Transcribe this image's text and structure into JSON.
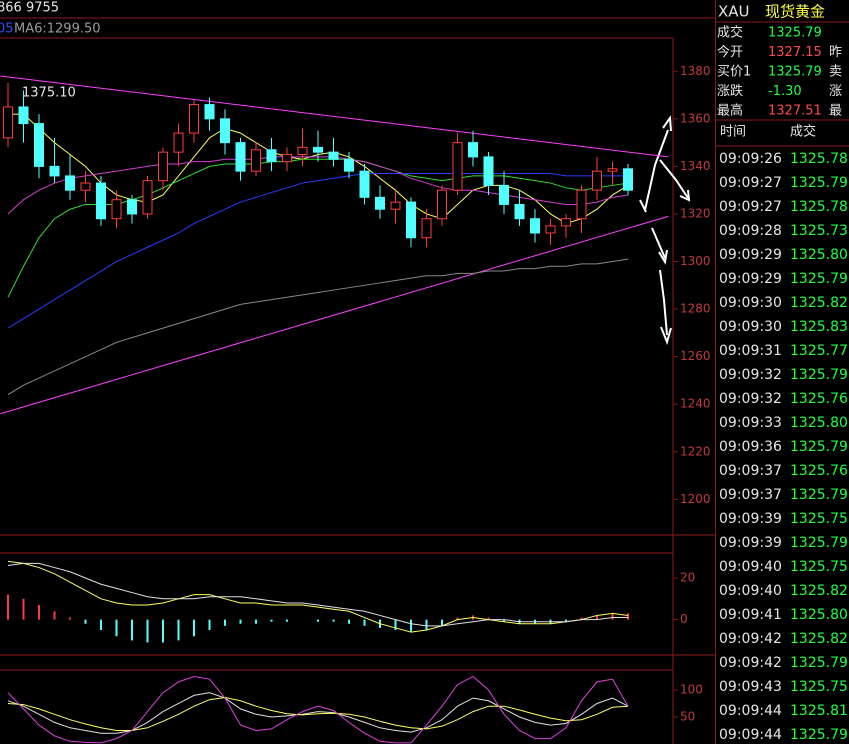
{
  "header": {
    "left_code": "866 9755",
    "ma_prefix": "05",
    "ma_label": "MA6:1299.50"
  },
  "chart_data": [
    {
      "type": "candlestick",
      "ylim": [
        1185,
        1394
      ],
      "yticks": [
        1200,
        1220,
        1240,
        1260,
        1280,
        1300,
        1320,
        1340,
        1360,
        1380
      ],
      "high_label": "1375.10",
      "up_color": "#ff3c3c",
      "down_color": "#50ffff",
      "candles": [
        [
          1352,
          1375.1,
          1348,
          1365
        ],
        [
          1365,
          1372,
          1350,
          1358
        ],
        [
          1358,
          1362,
          1335,
          1340
        ],
        [
          1340,
          1352,
          1333,
          1336
        ],
        [
          1336,
          1345,
          1326,
          1330
        ],
        [
          1330,
          1338,
          1325,
          1333
        ],
        [
          1333,
          1336,
          1315,
          1318
        ],
        [
          1318,
          1330,
          1314,
          1326
        ],
        [
          1326,
          1328,
          1316,
          1320
        ],
        [
          1320,
          1336,
          1318,
          1334
        ],
        [
          1334,
          1348,
          1330,
          1346
        ],
        [
          1346,
          1358,
          1340,
          1354
        ],
        [
          1354,
          1368,
          1350,
          1366
        ],
        [
          1366,
          1369,
          1355,
          1360
        ],
        [
          1360,
          1364,
          1345,
          1350
        ],
        [
          1350,
          1352,
          1334,
          1338
        ],
        [
          1338,
          1350,
          1336,
          1347
        ],
        [
          1347,
          1352,
          1338,
          1342
        ],
        [
          1342,
          1348,
          1338,
          1345
        ],
        [
          1345,
          1356,
          1340,
          1348
        ],
        [
          1348,
          1355,
          1342,
          1346
        ],
        [
          1346,
          1352,
          1340,
          1343
        ],
        [
          1343,
          1346,
          1335,
          1338
        ],
        [
          1338,
          1341,
          1324,
          1327
        ],
        [
          1327,
          1332,
          1318,
          1322
        ],
        [
          1322,
          1330,
          1316,
          1325
        ],
        [
          1325,
          1327,
          1306,
          1310
        ],
        [
          1310,
          1322,
          1306,
          1318
        ],
        [
          1318,
          1332,
          1315,
          1330
        ],
        [
          1330,
          1354,
          1328,
          1350
        ],
        [
          1350,
          1355,
          1340,
          1344
        ],
        [
          1344,
          1346,
          1328,
          1332
        ],
        [
          1332,
          1338,
          1320,
          1324
        ],
        [
          1324,
          1330,
          1315,
          1318
        ],
        [
          1318,
          1322,
          1308,
          1312
        ],
        [
          1312,
          1318,
          1307,
          1315
        ],
        [
          1315,
          1320,
          1310,
          1318
        ],
        [
          1318,
          1332,
          1312,
          1330
        ],
        [
          1330,
          1344,
          1326,
          1338
        ],
        [
          1338,
          1342,
          1332,
          1339
        ],
        [
          1339,
          1341,
          1328,
          1330
        ]
      ],
      "ma_lines": [
        {
          "color": "#ffff60",
          "values": [
            1362,
            1362,
            1356,
            1350,
            1345,
            1340,
            1333,
            1328,
            1326,
            1325,
            1328,
            1336,
            1344,
            1352,
            1356,
            1354,
            1350,
            1346,
            1344,
            1343,
            1345,
            1346,
            1344,
            1340,
            1335,
            1330,
            1324,
            1320,
            1318,
            1324,
            1330,
            1332,
            1332,
            1330,
            1326,
            1320,
            1316,
            1318,
            1322,
            1328,
            1332
          ]
        },
        {
          "color": "#30e030",
          "values": [
            1285,
            1298,
            1310,
            1318,
            1322,
            1324,
            1324,
            1324,
            1326,
            1328,
            1331,
            1334,
            1337,
            1340,
            1341,
            1341,
            1341,
            1342,
            1342,
            1343,
            1343,
            1343,
            1343,
            1342,
            1340,
            1338,
            1336,
            1335,
            1334,
            1335,
            1336,
            1336,
            1336,
            1335,
            1334,
            1333,
            1331,
            1330,
            1331,
            1332,
            1333
          ]
        },
        {
          "color": "#2a3cff",
          "values": [
            1272,
            1276,
            1280,
            1284,
            1288,
            1292,
            1296,
            1300,
            1303,
            1306,
            1309,
            1312,
            1316,
            1319,
            1322,
            1325,
            1327,
            1329,
            1331,
            1333,
            1334,
            1335,
            1336,
            1337,
            1337,
            1337,
            1337,
            1337,
            1337,
            1337,
            1337,
            1337,
            1337,
            1337,
            1337,
            1337,
            1336,
            1336,
            1336,
            1336,
            1336
          ]
        },
        {
          "color": "#888888",
          "values": [
            1244,
            1248,
            1251,
            1254,
            1257,
            1260,
            1263,
            1266,
            1268,
            1270,
            1272,
            1274,
            1276,
            1278,
            1280,
            1282,
            1283,
            1284,
            1285,
            1286,
            1287,
            1288,
            1289,
            1290,
            1291,
            1292,
            1293,
            1294,
            1294,
            1295,
            1295,
            1296,
            1296,
            1297,
            1297,
            1298,
            1298,
            1299,
            1299,
            1300,
            1301
          ]
        },
        {
          "color": "#d040d0",
          "values": [
            1320,
            1326,
            1330,
            1333,
            1335,
            1336,
            1337,
            1338,
            1339,
            1340,
            1341,
            1341,
            1342,
            1342,
            1343,
            1343,
            1343,
            1344,
            1344,
            1344,
            1344,
            1344,
            1343,
            1342,
            1340,
            1338,
            1335,
            1333,
            1331,
            1330,
            1330,
            1329,
            1328,
            1327,
            1326,
            1325,
            1324,
            1324,
            1325,
            1327,
            1328
          ]
        }
      ],
      "trendlines": [
        {
          "color": "#ff40ff",
          "x": [
            -0.5,
            42.6
          ],
          "y": [
            1378,
            1344
          ]
        },
        {
          "color": "#ff40ff",
          "x": [
            -0.5,
            42.6
          ],
          "y": [
            1236,
            1319
          ]
        }
      ]
    },
    {
      "type": "macd",
      "ylim": [
        -17,
        32
      ],
      "yticks": [
        0,
        20
      ],
      "up_color": "#ff3c3c",
      "down_color": "#50ffff",
      "values": [
        12,
        10,
        7,
        4,
        1,
        -2,
        -5,
        -8,
        -10,
        -11,
        -11,
        -10,
        -8,
        -5,
        -3,
        -2,
        -2,
        -1,
        -1,
        0,
        -1,
        -1,
        -2,
        -3,
        -4,
        -5,
        -6,
        -5,
        -3,
        1,
        2,
        1,
        -1,
        -2,
        -2,
        -2,
        -1,
        1,
        2,
        3,
        3
      ],
      "lines": [
        {
          "color": "#ffff60",
          "values": [
            28,
            27,
            25,
            22,
            18,
            14,
            10,
            8,
            7,
            7,
            8,
            10,
            12,
            12,
            10,
            8,
            8,
            7,
            7,
            7,
            6,
            5,
            4,
            1,
            -2,
            -4,
            -6,
            -5,
            -3,
            0,
            1,
            0,
            -1,
            -2,
            -2,
            -2,
            -1,
            0,
            2,
            3,
            2
          ]
        },
        {
          "color": "#e0e0e0",
          "values": [
            26,
            27,
            27,
            25,
            23,
            20,
            17,
            15,
            13,
            11,
            10,
            10,
            10,
            11,
            11,
            11,
            10,
            9,
            8,
            8,
            7,
            6,
            5,
            4,
            2,
            0,
            -2,
            -3,
            -3,
            -2,
            -1,
            0,
            0,
            -1,
            -1,
            -1,
            -1,
            0,
            0,
            1,
            1
          ]
        }
      ]
    },
    {
      "type": "line",
      "ylim": [
        0,
        137
      ],
      "yticks": [
        50,
        100
      ],
      "lines": [
        {
          "color": "#e0e0e0",
          "values": [
            80,
            70,
            55,
            40,
            30,
            25,
            20,
            20,
            25,
            40,
            60,
            75,
            90,
            95,
            85,
            65,
            55,
            50,
            52,
            55,
            60,
            58,
            50,
            40,
            30,
            25,
            22,
            30,
            45,
            70,
            85,
            80,
            65,
            50,
            40,
            35,
            38,
            55,
            75,
            85,
            70
          ]
        },
        {
          "color": "#ffff60",
          "values": [
            75,
            73,
            65,
            55,
            45,
            37,
            30,
            25,
            25,
            30,
            42,
            55,
            70,
            82,
            86,
            80,
            70,
            62,
            56,
            54,
            56,
            57,
            55,
            50,
            42,
            35,
            30,
            28,
            33,
            45,
            60,
            70,
            70,
            63,
            55,
            48,
            43,
            45,
            55,
            68,
            70
          ]
        },
        {
          "color": "#e040e0",
          "values": [
            95,
            65,
            35,
            15,
            5,
            3,
            2,
            10,
            25,
            60,
            95,
            115,
            125,
            120,
            85,
            35,
            25,
            28,
            45,
            60,
            70,
            62,
            40,
            20,
            5,
            2,
            2,
            35,
            70,
            110,
            125,
            100,
            55,
            25,
            10,
            10,
            30,
            80,
            115,
            120,
            70
          ]
        }
      ]
    }
  ],
  "quote_panel": {
    "symbol": "XAU",
    "name": "现货黄金",
    "rows": [
      [
        "成交",
        "1325.79",
        ""
      ],
      [
        "今开",
        "1327.15",
        "昨"
      ],
      [
        "买价1",
        "1325.79",
        "卖"
      ],
      [
        "涨跌",
        "-1.30",
        "涨"
      ],
      [
        "最高",
        "1327.51",
        "最"
      ]
    ],
    "list_header": [
      "时间",
      "成交"
    ],
    "trades": [
      [
        "09:09:26",
        "1325.78"
      ],
      [
        "09:09:27",
        "1325.79"
      ],
      [
        "09:09:27",
        "1325.78"
      ],
      [
        "09:09:28",
        "1325.73"
      ],
      [
        "09:09:29",
        "1325.80"
      ],
      [
        "09:09:29",
        "1325.79"
      ],
      [
        "09:09:30",
        "1325.82"
      ],
      [
        "09:09:30",
        "1325.83"
      ],
      [
        "09:09:31",
        "1325.77"
      ],
      [
        "09:09:32",
        "1325.79"
      ],
      [
        "09:09:32",
        "1325.76"
      ],
      [
        "09:09:33",
        "1325.80"
      ],
      [
        "09:09:36",
        "1325.79"
      ],
      [
        "09:09:37",
        "1325.76"
      ],
      [
        "09:09:37",
        "1325.79"
      ],
      [
        "09:09:39",
        "1325.75"
      ],
      [
        "09:09:39",
        "1325.79"
      ],
      [
        "09:09:40",
        "1325.75"
      ],
      [
        "09:09:40",
        "1325.82"
      ],
      [
        "09:09:41",
        "1325.80"
      ],
      [
        "09:09:42",
        "1325.82"
      ],
      [
        "09:09:42",
        "1325.79"
      ],
      [
        "09:09:43",
        "1325.75"
      ],
      [
        "09:09:44",
        "1325.81"
      ],
      [
        "09:09:44",
        "1325.79"
      ]
    ]
  }
}
